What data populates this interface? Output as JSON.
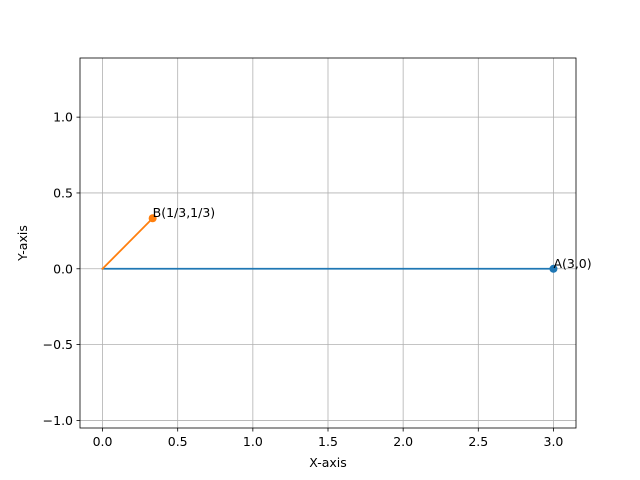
{
  "chart_data": {
    "type": "line",
    "title": "",
    "xlabel": "X-axis",
    "ylabel": "Y-axis",
    "xlim": [
      -0.15,
      3.15
    ],
    "ylim": [
      -1.05,
      1.39
    ],
    "xticks": [
      0.0,
      0.5,
      1.0,
      1.5,
      2.0,
      2.5,
      3.0
    ],
    "xtick_labels": [
      "0.0",
      "0.5",
      "1.0",
      "1.5",
      "2.0",
      "2.5",
      "3.0"
    ],
    "yticks": [
      -1.0,
      -0.5,
      0.0,
      0.5,
      1.0
    ],
    "ytick_labels": [
      "−1.0",
      "−0.5",
      "0.0",
      "0.5",
      "1.0"
    ],
    "grid": true,
    "legend": "none",
    "series": [
      {
        "color": "#1f77b4",
        "x": [
          0,
          3
        ],
        "y": [
          0,
          0
        ],
        "marker_at_end": true
      },
      {
        "color": "#ff7f0e",
        "x": [
          0,
          0.3333
        ],
        "y": [
          0,
          0.3333
        ],
        "marker_at_end": true
      }
    ],
    "annotations": [
      {
        "text": "A(3,0)",
        "x": 3,
        "y": 0
      },
      {
        "text": "B(1/3,1/3)",
        "x": 0.3333,
        "y": 0.3333
      }
    ]
  }
}
